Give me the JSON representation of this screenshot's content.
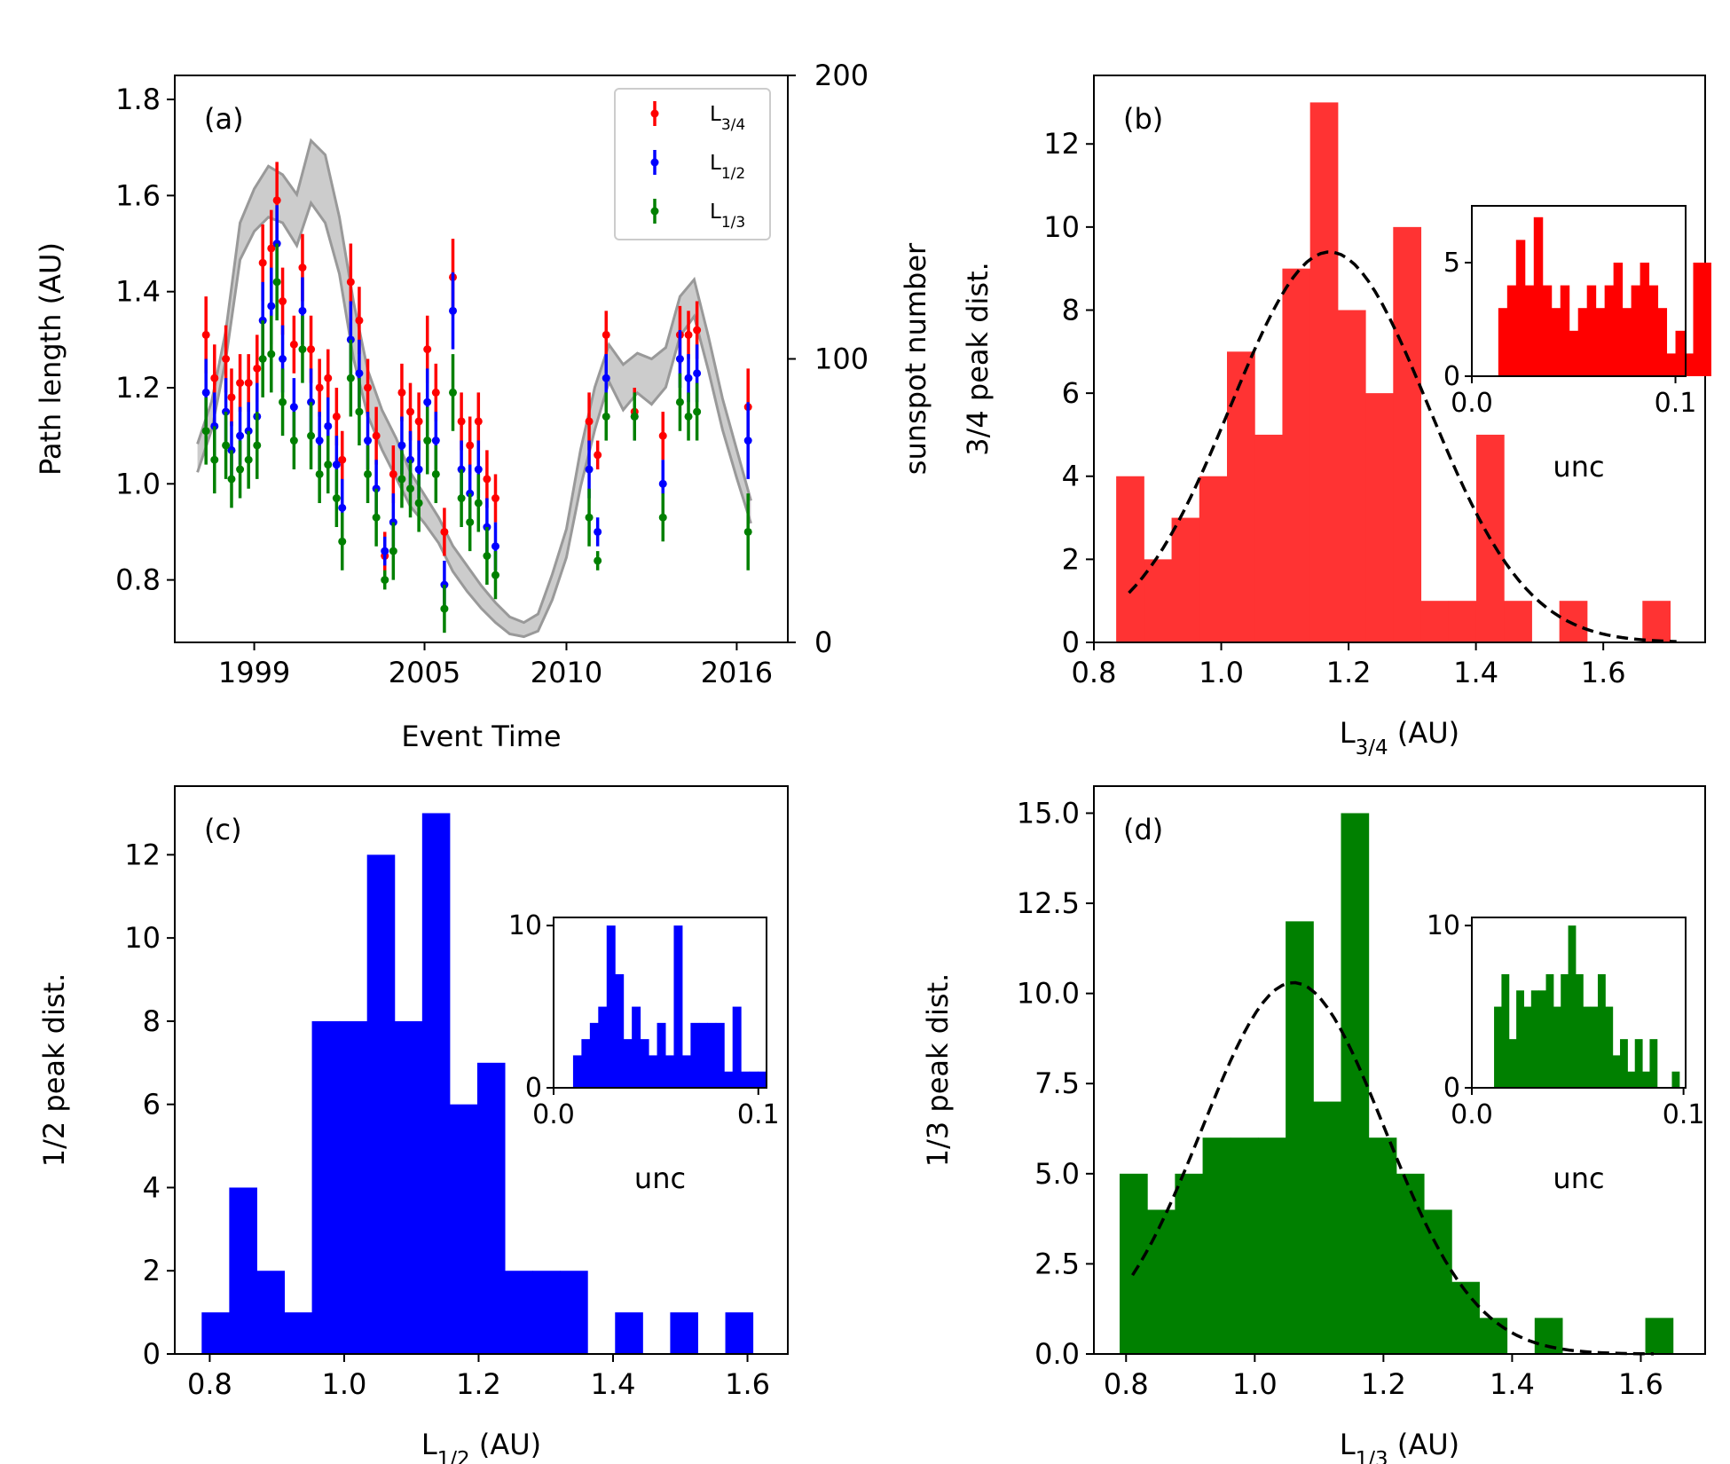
{
  "chart_data": [
    {
      "panel": "a",
      "type": "scatter",
      "panel_label": "(a)",
      "xlabel": "Event Time",
      "ylabel": "Path length (AU)",
      "y2label": "sunspot number",
      "xlim": [
        1996.2,
        2017.8
      ],
      "ylim": [
        0.67,
        1.85
      ],
      "y2lim": [
        0,
        200
      ],
      "xticks": [
        1999,
        2005,
        2010,
        2016
      ],
      "xticklabels": [
        "1999",
        "2005",
        "2010",
        "2016"
      ],
      "yticks": [
        0.8,
        1.0,
        1.2,
        1.4,
        1.6,
        1.8
      ],
      "yticklabels": [
        "0.8",
        "1.0",
        "1.2",
        "1.4",
        "1.6",
        "1.8"
      ],
      "y2ticks": [
        0,
        100,
        200
      ],
      "y2ticklabels": [
        "0",
        "100",
        "200"
      ],
      "legend": {
        "position": "top-right",
        "entries": [
          {
            "main": "L",
            "sub": "3/4",
            "color": "#ff0000"
          },
          {
            "main": "L",
            "sub": "1/2",
            "color": "#0000ff"
          },
          {
            "main": "L",
            "sub": "1/3",
            "color": "#008000"
          }
        ]
      },
      "sunspot_band": {
        "color": "#999999",
        "t": [
          1997.0,
          1997.5,
          1998.0,
          1998.5,
          1999.0,
          1999.5,
          2000.0,
          2000.5,
          2001.0,
          2001.5,
          2002.0,
          2002.5,
          2003.0,
          2003.5,
          2004.0,
          2004.5,
          2005.0,
          2005.5,
          2006.0,
          2006.5,
          2007.0,
          2007.5,
          2008.0,
          2008.5,
          2009.0,
          2009.5,
          2010.0,
          2010.5,
          2011.0,
          2011.5,
          2012.0,
          2012.5,
          2013.0,
          2013.5,
          2014.0,
          2014.5,
          2015.0,
          2015.5,
          2016.0,
          2016.5
        ],
        "low": [
          60,
          75,
          100,
          135,
          145,
          150,
          148,
          140,
          155,
          148,
          130,
          100,
          80,
          68,
          58,
          48,
          42,
          35,
          25,
          18,
          12,
          7,
          3,
          2,
          4,
          15,
          30,
          55,
          75,
          92,
          82,
          88,
          84,
          90,
          108,
          115,
          96,
          75,
          58,
          42
        ],
        "high": [
          70,
          85,
          110,
          148,
          160,
          168,
          165,
          158,
          177,
          172,
          150,
          120,
          96,
          82,
          72,
          60,
          52,
          44,
          34,
          27,
          20,
          14,
          9,
          7,
          10,
          24,
          40,
          68,
          90,
          105,
          98,
          102,
          100,
          104,
          122,
          128,
          108,
          86,
          68,
          50
        ]
      },
      "series": [
        {
          "name": "L3/4",
          "color": "#ff0000",
          "x": [
            1997.3,
            1997.6,
            1998.0,
            1998.2,
            1998.5,
            1998.8,
            1999.1,
            1999.3,
            1999.6,
            1999.8,
            2000.0,
            2000.4,
            2000.7,
            2001.0,
            2001.3,
            2001.6,
            2001.9,
            2002.1,
            2002.4,
            2002.7,
            2003.0,
            2003.3,
            2003.6,
            2003.9,
            2004.2,
            2004.5,
            2004.8,
            2005.1,
            2005.4,
            2005.7,
            2006.0,
            2006.3,
            2006.6,
            2006.9,
            2007.2,
            2007.5,
            2010.8,
            2011.1,
            2011.4,
            2012.4,
            2013.4,
            2014.0,
            2014.3,
            2014.6,
            2016.4
          ],
          "y": [
            1.31,
            1.22,
            1.26,
            1.18,
            1.21,
            1.21,
            1.24,
            1.46,
            1.49,
            1.59,
            1.38,
            1.29,
            1.45,
            1.28,
            1.2,
            1.22,
            1.14,
            1.05,
            1.42,
            1.34,
            1.2,
            1.1,
            0.85,
            1.02,
            1.19,
            1.15,
            1.13,
            1.28,
            1.19,
            0.9,
            1.43,
            1.13,
            1.08,
            1.13,
            1.01,
            0.97,
            1.13,
            1.06,
            1.31,
            1.15,
            1.1,
            1.31,
            1.31,
            1.32,
            1.16
          ],
          "err": [
            0.08,
            0.07,
            0.07,
            0.06,
            0.06,
            0.06,
            0.07,
            0.08,
            0.08,
            0.08,
            0.07,
            0.06,
            0.07,
            0.07,
            0.06,
            0.06,
            0.06,
            0.06,
            0.08,
            0.07,
            0.06,
            0.06,
            0.05,
            0.06,
            0.06,
            0.06,
            0.06,
            0.07,
            0.06,
            0.05,
            0.08,
            0.06,
            0.06,
            0.06,
            0.06,
            0.05,
            0.06,
            0.03,
            0.05,
            0.05,
            0.05,
            0.06,
            0.05,
            0.06,
            0.08
          ]
        },
        {
          "name": "L1/2",
          "color": "#0000ff",
          "x": [
            1997.3,
            1997.6,
            1998.0,
            1998.2,
            1998.5,
            1998.8,
            1999.1,
            1999.3,
            1999.6,
            1999.8,
            2000.0,
            2000.4,
            2000.7,
            2001.0,
            2001.3,
            2001.6,
            2001.9,
            2002.1,
            2002.4,
            2002.7,
            2003.0,
            2003.3,
            2003.6,
            2003.9,
            2004.2,
            2004.5,
            2004.8,
            2005.1,
            2005.4,
            2005.7,
            2006.0,
            2006.3,
            2006.6,
            2006.9,
            2007.2,
            2007.5,
            2010.8,
            2011.1,
            2011.4,
            2012.4,
            2013.4,
            2014.0,
            2014.3,
            2014.6,
            2016.4
          ],
          "y": [
            1.19,
            1.12,
            1.15,
            1.07,
            1.1,
            1.11,
            1.14,
            1.34,
            1.37,
            1.5,
            1.26,
            1.16,
            1.36,
            1.17,
            1.09,
            1.12,
            1.04,
            0.95,
            1.3,
            1.23,
            1.09,
            0.99,
            0.86,
            0.92,
            1.08,
            1.05,
            1.03,
            1.17,
            1.09,
            0.79,
            1.36,
            1.03,
            0.98,
            1.03,
            0.91,
            0.87,
            1.03,
            0.9,
            1.22,
            1.14,
            1.0,
            1.26,
            1.22,
            1.23,
            1.09
          ],
          "err": [
            0.07,
            0.07,
            0.07,
            0.06,
            0.06,
            0.06,
            0.07,
            0.08,
            0.08,
            0.08,
            0.07,
            0.06,
            0.07,
            0.07,
            0.06,
            0.06,
            0.06,
            0.06,
            0.08,
            0.07,
            0.06,
            0.06,
            0.03,
            0.06,
            0.06,
            0.06,
            0.06,
            0.07,
            0.06,
            0.05,
            0.08,
            0.06,
            0.06,
            0.06,
            0.06,
            0.05,
            0.06,
            0.03,
            0.05,
            0.05,
            0.05,
            0.06,
            0.05,
            0.06,
            0.08
          ]
        },
        {
          "name": "L1/3",
          "color": "#008000",
          "x": [
            1997.3,
            1997.6,
            1998.0,
            1998.2,
            1998.5,
            1998.8,
            1999.1,
            1999.3,
            1999.6,
            1999.8,
            2000.0,
            2000.4,
            2000.7,
            2001.0,
            2001.3,
            2001.6,
            2001.9,
            2002.1,
            2002.4,
            2002.7,
            2003.0,
            2003.3,
            2003.6,
            2003.9,
            2004.2,
            2004.5,
            2004.8,
            2005.1,
            2005.4,
            2005.7,
            2006.0,
            2006.3,
            2006.6,
            2006.9,
            2007.2,
            2007.5,
            2010.8,
            2011.1,
            2011.4,
            2012.4,
            2013.4,
            2014.0,
            2014.3,
            2014.6,
            2016.4
          ],
          "y": [
            1.11,
            1.05,
            1.08,
            1.01,
            1.03,
            1.05,
            1.08,
            1.26,
            1.27,
            1.42,
            1.17,
            1.09,
            1.28,
            1.1,
            1.02,
            1.04,
            0.97,
            0.88,
            1.22,
            1.15,
            1.02,
            0.93,
            0.8,
            0.86,
            1.01,
            0.99,
            0.96,
            1.09,
            1.02,
            0.74,
            1.19,
            0.97,
            0.92,
            0.96,
            0.85,
            0.81,
            0.93,
            0.84,
            1.14,
            1.14,
            0.93,
            1.17,
            1.14,
            1.15,
            0.9
          ],
          "err": [
            0.07,
            0.07,
            0.07,
            0.06,
            0.06,
            0.06,
            0.07,
            0.08,
            0.08,
            0.08,
            0.07,
            0.06,
            0.07,
            0.07,
            0.06,
            0.06,
            0.06,
            0.06,
            0.08,
            0.07,
            0.06,
            0.06,
            0.02,
            0.06,
            0.06,
            0.06,
            0.06,
            0.07,
            0.06,
            0.05,
            0.08,
            0.06,
            0.06,
            0.06,
            0.06,
            0.05,
            0.06,
            0.02,
            0.05,
            0.05,
            0.05,
            0.06,
            0.05,
            0.06,
            0.08
          ]
        }
      ]
    },
    {
      "panel": "b",
      "type": "bar",
      "panel_label": "(b)",
      "color": "#ff3333",
      "xlabel_main": "L",
      "xlabel_sub": "3/4",
      "xlabel_rest": " (AU)",
      "ylabel": "3/4 peak dist.",
      "xlim": [
        0.8,
        1.76
      ],
      "ylim": [
        0,
        13.65
      ],
      "xticks": [
        0.8,
        1.0,
        1.2,
        1.4,
        1.6
      ],
      "xticklabels": [
        "0.8",
        "1.0",
        "1.2",
        "1.4",
        "1.6"
      ],
      "yticks": [
        0,
        2,
        4,
        6,
        8,
        10,
        12
      ],
      "yticklabels": [
        "0",
        "2",
        "4",
        "6",
        "8",
        "10",
        "12"
      ],
      "bin_start": 0.835,
      "bin_width": 0.0435,
      "counts": [
        4,
        2,
        3,
        4,
        7,
        5,
        9,
        13,
        8,
        6,
        10,
        1,
        1,
        5,
        1,
        0,
        1,
        0,
        0,
        1
      ],
      "fit": {
        "amp": 9.4,
        "mu": 1.17,
        "sigma": 0.155,
        "x0": 0.855,
        "x1": 1.715
      },
      "inset": {
        "color": "#ff0000",
        "xlabel": "unc",
        "xlim": [
          0.0,
          0.105
        ],
        "ylim": [
          0,
          7.5
        ],
        "xticks": [
          0.0,
          0.1
        ],
        "xticklabels": [
          "0.0",
          "0.1"
        ],
        "yticks": [
          0,
          5
        ],
        "yticklabels": [
          "0",
          "5"
        ],
        "bin_start": 0.013,
        "bin_width": 0.00435,
        "counts": [
          3,
          4,
          6,
          4,
          7,
          4,
          3,
          4,
          2,
          3,
          4,
          3,
          4,
          5,
          3,
          4,
          5,
          4,
          3,
          1,
          2,
          1,
          5,
          5
        ]
      }
    },
    {
      "panel": "c",
      "type": "bar",
      "panel_label": "(c)",
      "color": "#0000ff",
      "xlabel_main": "L",
      "xlabel_sub": "1/2",
      "xlabel_rest": " (AU)",
      "ylabel": "1/2 peak dist.",
      "xlim": [
        0.748,
        1.66
      ],
      "ylim": [
        0,
        13.65
      ],
      "xticks": [
        0.8,
        1.0,
        1.2,
        1.4,
        1.6
      ],
      "xticklabels": [
        "0.8",
        "1.0",
        "1.2",
        "1.4",
        "1.6"
      ],
      "yticks": [
        0,
        2,
        4,
        6,
        8,
        10,
        12
      ],
      "yticklabels": [
        "0",
        "2",
        "4",
        "6",
        "8",
        "10",
        "12"
      ],
      "bin_start": 0.788,
      "bin_width": 0.041,
      "counts": [
        1,
        4,
        2,
        1,
        8,
        8,
        12,
        8,
        13,
        6,
        7,
        2,
        2,
        2,
        0,
        1,
        0,
        1,
        0,
        1
      ],
      "inset": {
        "color": "#0000ff",
        "xlabel": "unc",
        "xlim": [
          0.0,
          0.104
        ],
        "ylim": [
          0,
          10.5
        ],
        "xticks": [
          0.0,
          0.1
        ],
        "xticklabels": [
          "0.0",
          "0.1"
        ],
        "yticks": [
          0,
          10
        ],
        "yticklabels": [
          "0",
          "10"
        ],
        "bin_start": 0.0095,
        "bin_width": 0.0041,
        "counts": [
          2,
          3,
          4,
          5,
          10,
          7,
          3,
          5,
          3,
          2,
          4,
          2,
          10,
          2,
          4,
          4,
          4,
          4,
          1,
          5,
          1,
          1,
          1
        ]
      }
    },
    {
      "panel": "d",
      "type": "bar",
      "panel_label": "(d)",
      "color": "#008000",
      "xlabel_main": "L",
      "xlabel_sub": "1/3",
      "xlabel_rest": " (AU)",
      "ylabel": "1/3 peak dist.",
      "xlim": [
        0.75,
        1.7
      ],
      "ylim": [
        0,
        15.75
      ],
      "xticks": [
        0.8,
        1.0,
        1.2,
        1.4,
        1.6
      ],
      "xticklabels": [
        "0.8",
        "1.0",
        "1.2",
        "1.4",
        "1.6"
      ],
      "yticks": [
        0.0,
        2.5,
        5.0,
        7.5,
        10.0,
        12.5,
        15.0
      ],
      "yticklabels": [
        "0.0",
        "2.5",
        "5.0",
        "7.5",
        "10.0",
        "12.5",
        "15.0"
      ],
      "bin_start": 0.79,
      "bin_width": 0.043,
      "counts": [
        5,
        4,
        5,
        6,
        6,
        6,
        12,
        7,
        15,
        6,
        5,
        4,
        2,
        1,
        0,
        1,
        0,
        0,
        0,
        1
      ],
      "fit": {
        "amp": 10.3,
        "mu": 1.06,
        "sigma": 0.142,
        "x0": 0.81,
        "x1": 1.62
      },
      "inset": {
        "color": "#008000",
        "xlabel": "unc",
        "xlim": [
          0.0,
          0.101
        ],
        "ylim": [
          0,
          10.5
        ],
        "xticks": [
          0.0,
          0.1
        ],
        "xticklabels": [
          "0.0",
          "0.1"
        ],
        "yticks": [
          0,
          10
        ],
        "yticklabels": [
          "0",
          "10"
        ],
        "bin_start": 0.0105,
        "bin_width": 0.0035,
        "counts": [
          5,
          7,
          3,
          6,
          5,
          6,
          6,
          7,
          5,
          7,
          10,
          7,
          5,
          5,
          7,
          5,
          2,
          3,
          1,
          3,
          1,
          3,
          0,
          0,
          1
        ]
      }
    }
  ]
}
